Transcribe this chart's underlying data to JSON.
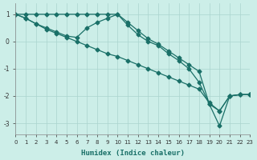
{
  "xlabel": "Humidex (Indice chaleur)",
  "ylabel": "",
  "xlim": [
    0,
    23
  ],
  "ylim": [
    -3.4,
    1.4
  ],
  "yticks": [
    1,
    0,
    -1,
    -2,
    -3
  ],
  "xticks": [
    0,
    1,
    2,
    3,
    4,
    5,
    6,
    7,
    8,
    9,
    10,
    11,
    12,
    13,
    14,
    15,
    16,
    17,
    18,
    19,
    20,
    21,
    22,
    23
  ],
  "background_color": "#cceee8",
  "grid_color": "#aad4ce",
  "line_color": "#1a7068",
  "line1_x": [
    0,
    1,
    2,
    3,
    4,
    5,
    6,
    7,
    8,
    9,
    10,
    11,
    12,
    13,
    14,
    15,
    16,
    17,
    18,
    19,
    20,
    21,
    22,
    23
  ],
  "line1_y": [
    1.0,
    1.0,
    1.0,
    1.0,
    1.0,
    1.0,
    1.0,
    1.0,
    1.0,
    1.0,
    1.0,
    0.7,
    0.4,
    0.1,
    -0.1,
    -0.35,
    -0.6,
    -0.85,
    -1.1,
    -2.3,
    -3.1,
    -2.0,
    -1.95,
    -1.95
  ],
  "line2_x": [
    0,
    1,
    2,
    3,
    4,
    5,
    6,
    7,
    8,
    9,
    10,
    11,
    12,
    13,
    14,
    15,
    16,
    17,
    18,
    19,
    20,
    21,
    22,
    23
  ],
  "line2_y": [
    1.0,
    0.85,
    0.65,
    0.5,
    0.35,
    0.2,
    0.15,
    0.5,
    0.7,
    0.85,
    1.0,
    0.6,
    0.25,
    0.0,
    -0.15,
    -0.45,
    -0.7,
    -1.0,
    -1.5,
    -2.3,
    -2.55,
    -2.0,
    -1.95,
    -1.95
  ],
  "line3_x": [
    0,
    1,
    2,
    3,
    4,
    5,
    6,
    7,
    8,
    9,
    10,
    11,
    12,
    13,
    14,
    15,
    16,
    17,
    18,
    19,
    20,
    21,
    22,
    23
  ],
  "line3_y": [
    1.0,
    0.85,
    0.65,
    0.45,
    0.3,
    0.15,
    0.0,
    -0.15,
    -0.3,
    -0.45,
    -0.55,
    -0.7,
    -0.85,
    -1.0,
    -1.15,
    -1.3,
    -1.45,
    -1.6,
    -1.75,
    -2.25,
    -2.55,
    -2.0,
    -1.95,
    -1.95
  ],
  "marker": "D",
  "marker_size": 2.5,
  "line_width": 0.9
}
